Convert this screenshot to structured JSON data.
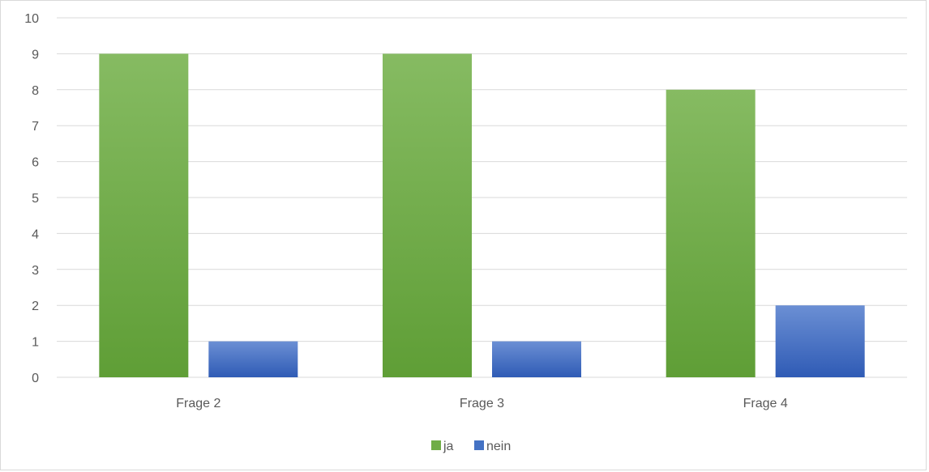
{
  "chart_data": {
    "type": "bar",
    "categories": [
      "Frage 2",
      "Frage 3",
      "Frage 4"
    ],
    "series": [
      {
        "name": "ja",
        "values": [
          9,
          9,
          8
        ],
        "color": "#70ad47",
        "color_top": "#86bb62",
        "color_bottom": "#5f9e36"
      },
      {
        "name": "nein",
        "values": [
          1,
          1,
          2
        ],
        "color": "#4472c4",
        "color_top": "#6b8fd4",
        "color_bottom": "#2f5bb5"
      }
    ],
    "ylim": [
      0,
      10
    ],
    "yticks": [
      0,
      1,
      2,
      3,
      4,
      5,
      6,
      7,
      8,
      9,
      10
    ],
    "grid": true,
    "gridline_color": "#d9d9d9",
    "legend_position": "bottom",
    "title": "",
    "xlabel": "",
    "ylabel": ""
  }
}
